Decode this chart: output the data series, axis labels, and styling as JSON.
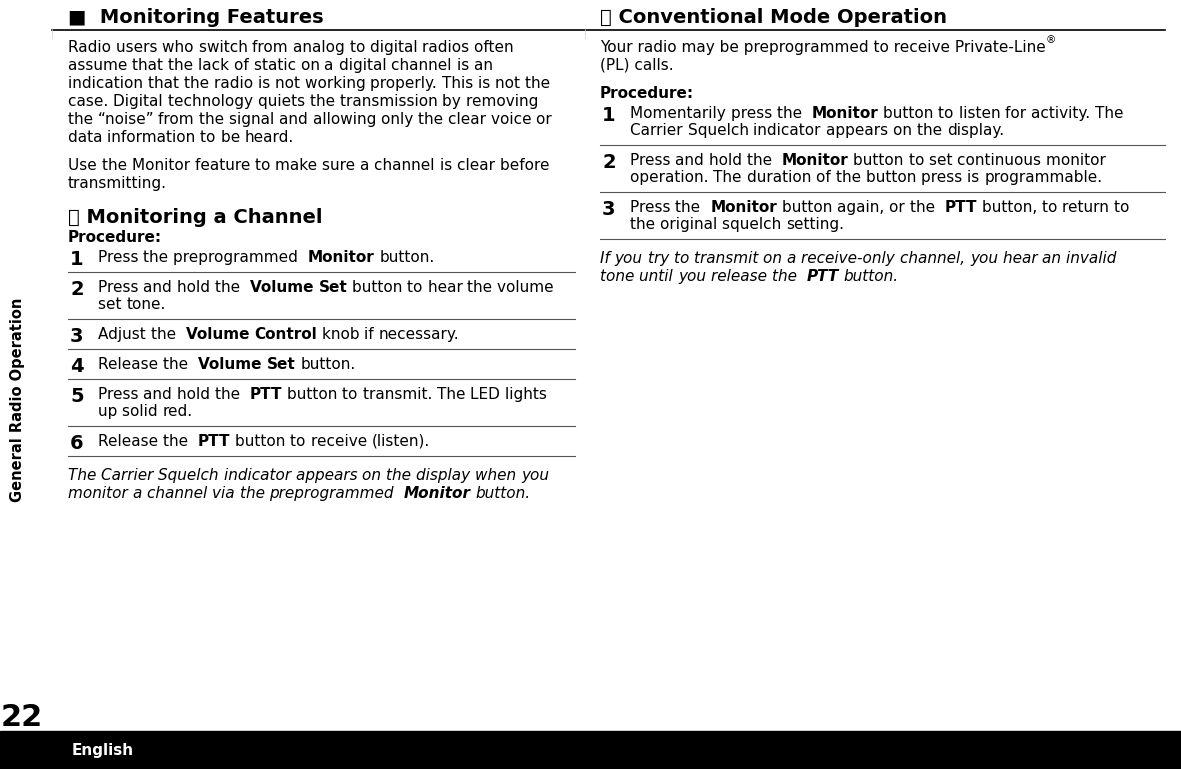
{
  "bg_color": "#ffffff",
  "sidebar_text": "General Radio Operation",
  "page_number": "22",
  "bottom_bar_color": "#000000",
  "bottom_bar_text": "English",
  "bottom_bar_text_color": "#ffffff",
  "left_col": {
    "heading_bullet": "■",
    "heading": "Monitoring Features",
    "para1": "Radio users who switch from analog to digital radios often assume that the lack of static on a digital channel is an indication that the radio is not working properly. This is not the case. Digital technology quiets the transmission by removing the “noise” from the signal and allowing only the clear voice or data information to be heard.",
    "para2": "Use the Monitor feature to make sure a channel is clear before transmitting.",
    "subheading": "Monitoring a Channel",
    "procedure_label": "Procedure:",
    "steps": [
      {
        "num": "1",
        "parts": [
          {
            "t": "Press the preprogrammed ",
            "b": false
          },
          {
            "t": "Monitor",
            "b": true
          },
          {
            "t": " button.",
            "b": false
          }
        ]
      },
      {
        "num": "2",
        "parts": [
          {
            "t": "Press and hold the ",
            "b": false
          },
          {
            "t": "Volume Set",
            "b": true
          },
          {
            "t": " button to hear the volume set tone.",
            "b": false
          }
        ]
      },
      {
        "num": "3",
        "parts": [
          {
            "t": "Adjust the ",
            "b": false
          },
          {
            "t": "Volume Control",
            "b": true
          },
          {
            "t": " knob if necessary.",
            "b": false
          }
        ]
      },
      {
        "num": "4",
        "parts": [
          {
            "t": "Release the ",
            "b": false
          },
          {
            "t": "Volume Set",
            "b": true
          },
          {
            "t": " button.",
            "b": false
          }
        ]
      },
      {
        "num": "5",
        "parts": [
          {
            "t": "Press and hold the ",
            "b": false
          },
          {
            "t": "PTT",
            "b": true
          },
          {
            "t": " button to transmit. The LED lights up solid red.",
            "b": false
          }
        ]
      },
      {
        "num": "6",
        "parts": [
          {
            "t": "Release the ",
            "b": false
          },
          {
            "t": "PTT",
            "b": true
          },
          {
            "t": " button to receive (listen).",
            "b": false
          }
        ]
      }
    ],
    "note_parts": [
      {
        "t": "The Carrier Squelch indicator appears on the display when you monitor a channel via the preprogrammed ",
        "b": false,
        "i": true
      },
      {
        "t": "Monitor",
        "b": true,
        "i": true
      },
      {
        "t": " button.",
        "b": false,
        "i": true
      }
    ]
  },
  "right_col": {
    "heading": "Conventional Mode Operation",
    "para1a": "Your radio may be preprogrammed to receive Private-Line",
    "para1b": "(PL) calls.",
    "procedure_label": "Procedure:",
    "steps": [
      {
        "num": "1",
        "parts": [
          {
            "t": "Momentarily press the ",
            "b": false
          },
          {
            "t": "Monitor",
            "b": true
          },
          {
            "t": " button to listen for activity. The Carrier Squelch indicator appears on the display.",
            "b": false
          }
        ]
      },
      {
        "num": "2",
        "parts": [
          {
            "t": "Press and hold the ",
            "b": false
          },
          {
            "t": "Monitor",
            "b": true
          },
          {
            "t": " button to set continuous monitor operation. The duration of the button press is programmable.",
            "b": false
          }
        ]
      },
      {
        "num": "3",
        "parts": [
          {
            "t": "Press the ",
            "b": false
          },
          {
            "t": "Monitor",
            "b": true
          },
          {
            "t": " button again, or the ",
            "b": false
          },
          {
            "t": "PTT",
            "b": true
          },
          {
            "t": " button, to return to the original squelch setting.",
            "b": false
          }
        ]
      }
    ],
    "note_parts": [
      {
        "t": "If you try to transmit on a receive-only channel, you hear an invalid tone until you release the ",
        "b": false,
        "i": true
      },
      {
        "t": "PTT",
        "b": true,
        "i": true
      },
      {
        "t": " button.",
        "b": false,
        "i": true
      }
    ]
  }
}
